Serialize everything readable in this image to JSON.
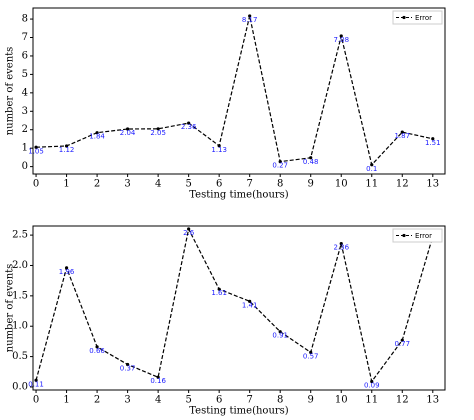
{
  "chart_data": [
    {
      "type": "line",
      "xlabel": "Testing time(hours)",
      "ylabel": "number of events",
      "x": [
        0,
        1,
        2,
        3,
        4,
        5,
        6,
        7,
        8,
        9,
        10,
        11,
        12,
        13
      ],
      "series": [
        {
          "name": "Error",
          "color": "#000000",
          "values": [
            1.05,
            1.12,
            1.84,
            2.04,
            2.05,
            2.36,
            1.13,
            8.17,
            0.27,
            0.48,
            7.08,
            0.1,
            1.87,
            1.51
          ]
        }
      ],
      "xlim": [
        -0.1,
        13.4
      ],
      "ylim": [
        -0.4,
        8.6
      ],
      "xticks": [
        0,
        1,
        2,
        3,
        4,
        5,
        6,
        7,
        8,
        9,
        10,
        11,
        12,
        13
      ],
      "yticks": [
        0,
        1,
        2,
        3,
        4,
        5,
        6,
        7,
        8
      ],
      "legend": "upper right",
      "label_color": "#1a1aff"
    },
    {
      "type": "line",
      "xlabel": "Testing time(hours)",
      "ylabel": "number of events",
      "x": [
        0,
        1,
        2,
        3,
        4,
        5,
        6,
        7,
        8,
        9,
        10,
        11,
        12,
        13
      ],
      "series": [
        {
          "name": "Error",
          "color": "#000000",
          "values": [
            0.11,
            1.96,
            0.66,
            0.37,
            0.16,
            2.6,
            1.61,
            1.41,
            0.91,
            0.57,
            2.36,
            0.09,
            0.77,
            2.48
          ]
        }
      ],
      "xlim": [
        -0.1,
        13.4
      ],
      "ylim": [
        -0.05,
        2.65
      ],
      "xticks": [
        0,
        1,
        2,
        3,
        4,
        5,
        6,
        7,
        8,
        9,
        10,
        11,
        12,
        13
      ],
      "yticks": [
        {
          "value": 0,
          "label": "0.0"
        },
        {
          "value": 0.5,
          "label": "0.5"
        },
        {
          "value": 1,
          "label": "1.0"
        },
        {
          "value": 1.5,
          "label": "1.5"
        },
        {
          "value": 2,
          "label": "2.0"
        },
        {
          "value": 2.5,
          "label": "2.5"
        }
      ],
      "legend": "upper right",
      "label_color": "#1a1aff"
    }
  ]
}
